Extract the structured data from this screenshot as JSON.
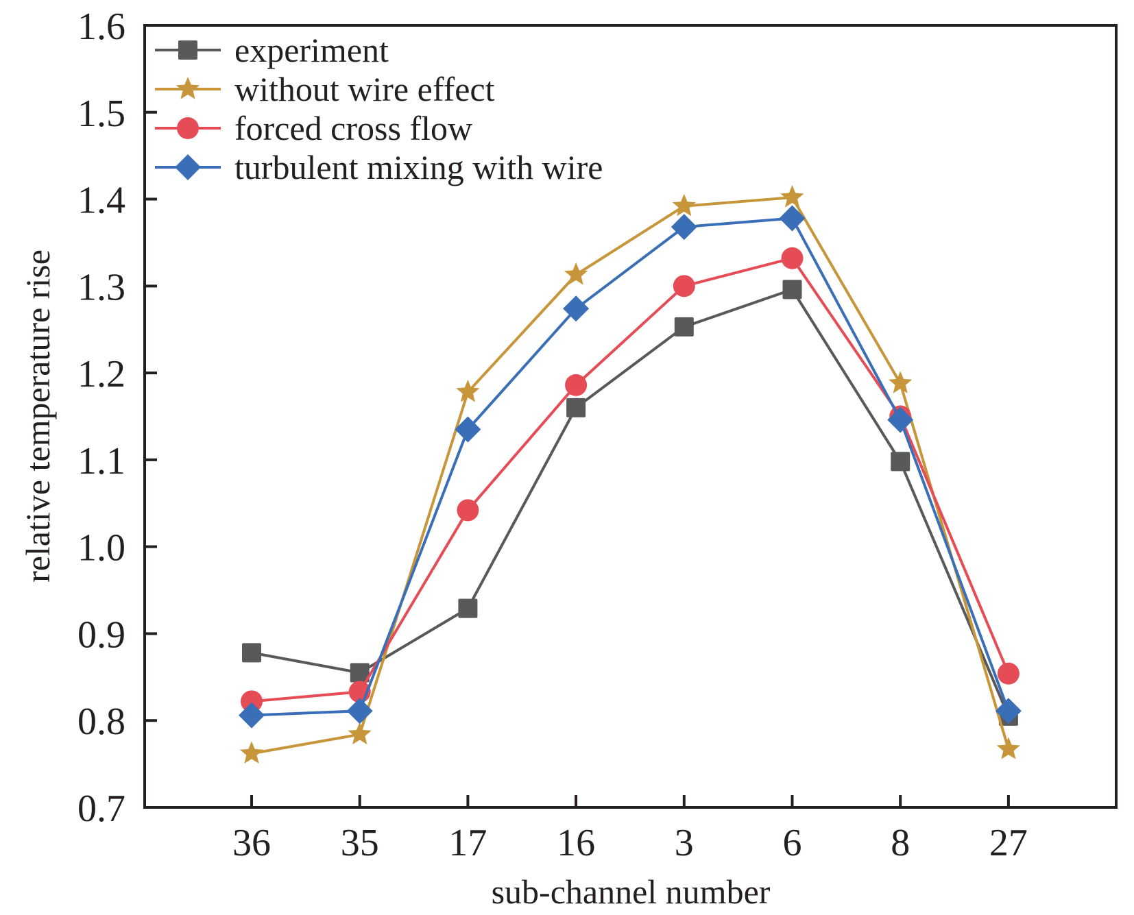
{
  "chart_data": {
    "type": "line",
    "title": "",
    "xlabel": "sub-channel number",
    "ylabel": "relative temperature rise",
    "categories": [
      "36",
      "35",
      "17",
      "16",
      "3",
      "6",
      "8",
      "27"
    ],
    "ylim": [
      0.7,
      1.6
    ],
    "yticks": [
      "0.7",
      "0.8",
      "0.9",
      "1.0",
      "1.1",
      "1.2",
      "1.3",
      "1.4",
      "1.5",
      "1.6"
    ],
    "grid": false,
    "legend_position": "top-left",
    "series": [
      {
        "name": "experiment",
        "marker": "square",
        "color": "#58595b",
        "values": [
          0.878,
          0.855,
          0.929,
          1.16,
          1.253,
          1.296,
          1.098,
          0.805
        ]
      },
      {
        "name": "without wire effect",
        "marker": "star",
        "color": "#c8963a",
        "values": [
          0.762,
          0.784,
          1.178,
          1.313,
          1.392,
          1.402,
          1.188,
          0.767
        ]
      },
      {
        "name": "forced cross flow",
        "marker": "circle",
        "color": "#e64c55",
        "values": [
          0.822,
          0.833,
          1.042,
          1.186,
          1.3,
          1.332,
          1.15,
          0.854
        ]
      },
      {
        "name": "turbulent mixing with wire",
        "marker": "diamond",
        "color": "#3a6fb8",
        "values": [
          0.806,
          0.811,
          1.135,
          1.274,
          1.368,
          1.378,
          1.146,
          0.811
        ]
      }
    ]
  }
}
